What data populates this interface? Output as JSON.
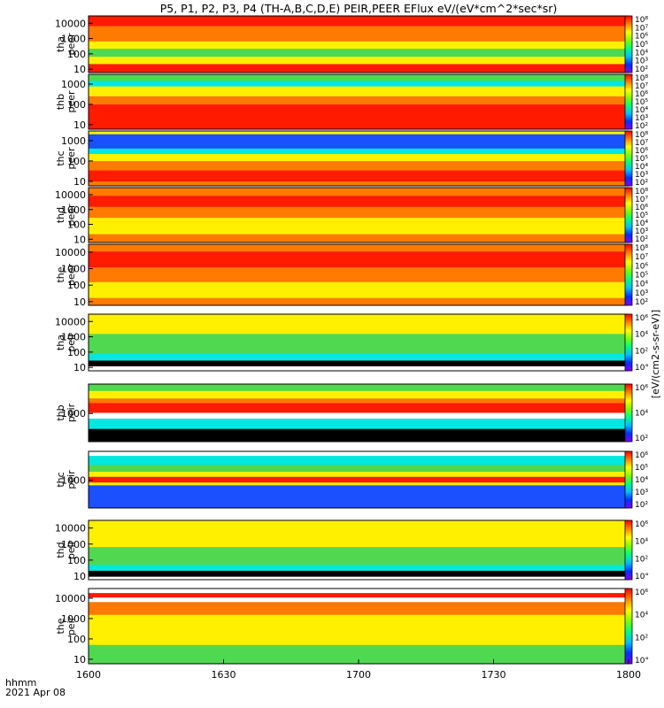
{
  "title": "P5, P1, P2, P3, P4 (TH-A,B,C,D,E) PEIR,PEER EFlux eV/(eV*cm^2*sec*sr)",
  "footer": {
    "time_label": "hhmm",
    "date_label": "2021 Apr 08"
  },
  "colorbar_unit_label": "[eV/(cm2-s-sr-eV)]",
  "chart_data": [
    {
      "type": "heatmap",
      "ylabel": [
        "tha",
        "peer"
      ],
      "yscale": "log",
      "ylim": [
        6,
        30000
      ],
      "yticks": [
        "10",
        "100",
        "1000",
        "10000"
      ],
      "cb_ticks": [
        "10²",
        "10³",
        "10⁴",
        "10⁵",
        "10⁶",
        "10⁷",
        "10⁸"
      ]
    },
    {
      "type": "heatmap",
      "ylabel": [
        "thb",
        "peer"
      ],
      "yscale": "log",
      "ylim": [
        6,
        3000
      ],
      "yticks": [
        "10",
        "100",
        "1000"
      ],
      "cb_ticks": [
        "10²",
        "10³",
        "10⁴",
        "10⁵",
        "10⁶",
        "10⁷",
        "10⁸"
      ]
    },
    {
      "type": "heatmap",
      "ylabel": [
        "thc",
        "peer"
      ],
      "yscale": "log",
      "ylim": [
        6,
        3000
      ],
      "yticks": [
        "10",
        "100",
        "1000"
      ],
      "cb_ticks": [
        "10²",
        "10³",
        "10⁴",
        "10⁵",
        "10⁶",
        "10⁷",
        "10⁸"
      ]
    },
    {
      "type": "heatmap",
      "ylabel": [
        "thd",
        "peer"
      ],
      "yscale": "log",
      "ylim": [
        6,
        30000
      ],
      "yticks": [
        "10",
        "100",
        "1000",
        "10000"
      ],
      "cb_ticks": [
        "10²",
        "10³",
        "10⁴",
        "10⁵",
        "10⁶",
        "10⁷",
        "10⁸"
      ]
    },
    {
      "type": "heatmap",
      "ylabel": [
        "the",
        "peer"
      ],
      "yscale": "log",
      "ylim": [
        6,
        30000
      ],
      "yticks": [
        "10",
        "100",
        "1000",
        "10000"
      ],
      "cb_ticks": [
        "10²",
        "10³",
        "10⁴",
        "10⁵",
        "10⁶",
        "10⁷",
        "10⁸"
      ]
    },
    {
      "type": "heatmap",
      "ylabel": [
        "tha",
        "peir"
      ],
      "yscale": "log",
      "ylim": [
        6,
        30000
      ],
      "yticks": [
        "10",
        "100",
        "1000",
        "10000"
      ],
      "cb_ticks": [
        "10°",
        "10²",
        "10⁴",
        "10⁶"
      ]
    },
    {
      "type": "heatmap",
      "ylabel": [
        "thb",
        "peir"
      ],
      "yscale": "log",
      "ylim": [
        180,
        6000
      ],
      "yticks": [
        "1000"
      ],
      "cb_ticks": [
        "10²",
        "10⁴",
        "10⁶"
      ]
    },
    {
      "type": "heatmap",
      "ylabel": [
        "thc",
        "peir"
      ],
      "yscale": "log",
      "ylim": [
        180,
        6000
      ],
      "yticks": [
        "1000"
      ],
      "cb_ticks": [
        "10²",
        "10³",
        "10⁴",
        "10⁵",
        "10⁶"
      ]
    },
    {
      "type": "heatmap",
      "ylabel": [
        "thd",
        "peir"
      ],
      "yscale": "log",
      "ylim": [
        6,
        30000
      ],
      "yticks": [
        "10",
        "100",
        "1000",
        "10000"
      ],
      "cb_ticks": [
        "10°",
        "10²",
        "10⁴",
        "10⁶"
      ]
    },
    {
      "type": "heatmap",
      "ylabel": [
        "the",
        "peir"
      ],
      "yscale": "log",
      "ylim": [
        6,
        30000
      ],
      "yticks": [
        "10",
        "100",
        "1000",
        "10000"
      ],
      "cb_ticks": [
        "10°",
        "10²",
        "10⁴",
        "10⁶"
      ]
    }
  ],
  "x_ticks": [
    "1600",
    "1630",
    "1700",
    "1730",
    "1800"
  ]
}
